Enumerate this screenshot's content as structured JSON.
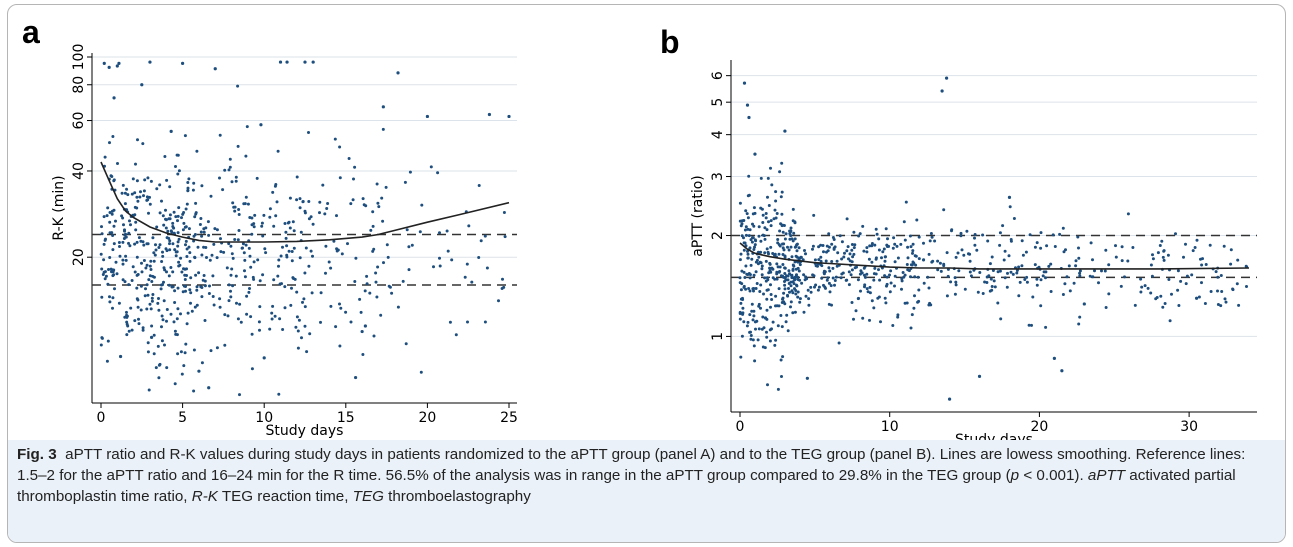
{
  "panels": {
    "a": {
      "letter": "a"
    },
    "b": {
      "letter": "b"
    }
  },
  "caption": {
    "label": "Fig. 3",
    "text_1": "aPTT ratio and R-K values during study days in patients randomized to the aPTT group (panel A) and to the TEG group (panel B). Lines are lowess smoothing. Reference lines: 1.5–2 for the aPTT ratio and 16–24 min for the R time. 56.5% of the analysis was in range in the aPTT group compared to 29.8% in the TEG group (",
    "p_symbol": "p",
    "text_2": " < 0.001). ",
    "abbr_aptt": "aPTT",
    "def_aptt": " activated partial thromboplastin time ratio, ",
    "abbr_rk": "R-K",
    "def_rk": " TEG reaction time, ",
    "abbr_teg": "TEG",
    "def_teg": " thromboelastography"
  },
  "chart_data": [
    {
      "type": "scatter",
      "panel": "a",
      "title": "",
      "xlabel": "Study days",
      "ylabel": "R-K (min)",
      "xlim": [
        0,
        25
      ],
      "x_ticks": [
        0,
        5,
        10,
        15,
        20,
        25
      ],
      "y_scale": "log",
      "ylim": [
        6.5,
        100
      ],
      "y_ticks": [
        20,
        40,
        60,
        80,
        100
      ],
      "y_tick_labels": [
        "20",
        "40",
        "60",
        "80",
        "100"
      ],
      "reference_lines": [
        16,
        24
      ],
      "grid": true,
      "series": [
        {
          "kind": "lowess",
          "x": [
            0,
            0.5,
            1,
            1.5,
            2,
            3,
            4,
            5,
            6,
            7,
            8,
            10,
            12,
            14,
            16,
            17,
            18,
            20,
            22,
            25
          ],
          "y": [
            43,
            37,
            32,
            29,
            27.5,
            25.5,
            24.3,
            23.5,
            22.9,
            22.6,
            22.6,
            22.6,
            22.7,
            23.0,
            23.5,
            24.0,
            24.8,
            26.5,
            28.2,
            31
          ]
        },
        {
          "kind": "points",
          "note": "approx. 800 individual R-K measurements read as a density cloud",
          "x": [
            0.2,
            0.5,
            1.0,
            1.1,
            3.0,
            5.0,
            7.0,
            11.0,
            11.4,
            12.5,
            13.0,
            17.3,
            18.2,
            20.0,
            23.8,
            25.0,
            0.8,
            2.5,
            4.3,
            9.8,
            16.0,
            16.2,
            6.0,
            6.6,
            15.6,
            1.2,
            3.1,
            10.0
          ],
          "y": [
            95,
            92,
            93,
            95,
            96,
            95,
            91,
            96,
            96,
            96,
            96,
            67,
            88,
            62,
            63,
            62,
            72,
            80,
            55,
            58,
            11,
            11.5,
            8,
            7,
            7.6,
            9,
            10.5,
            8.9
          ]
        }
      ]
    },
    {
      "type": "scatter",
      "panel": "b",
      "title": "",
      "xlabel": "Study days",
      "ylabel": "aPTT (ratio)",
      "xlim": [
        0,
        34
      ],
      "x_ticks": [
        0,
        10,
        20,
        30
      ],
      "y_scale": "log",
      "ylim": [
        0.62,
        6.5
      ],
      "y_ticks": [
        1,
        2,
        3,
        4,
        5,
        6
      ],
      "reference_lines": [
        1.5,
        2
      ],
      "grid": true,
      "series": [
        {
          "kind": "lowess",
          "x": [
            0,
            0.5,
            1,
            2,
            3,
            4,
            5,
            6,
            8,
            10,
            12,
            14,
            16,
            18,
            20,
            24,
            28,
            34
          ],
          "y": [
            1.9,
            1.82,
            1.77,
            1.73,
            1.7,
            1.68,
            1.66,
            1.65,
            1.63,
            1.61,
            1.6,
            1.6,
            1.59,
            1.59,
            1.59,
            1.59,
            1.59,
            1.6
          ]
        },
        {
          "kind": "points",
          "note": "approx. 1000 individual aPTT ratio measurements read as a density cloud",
          "x": [
            0.3,
            0.5,
            0.6,
            1.0,
            3.0,
            13.5,
            13.8,
            4.5,
            14.0,
            16.0,
            21.0,
            21.5,
            18.0,
            23.0,
            30.5
          ],
          "y": [
            5.7,
            4.9,
            4.5,
            3.5,
            4.1,
            5.4,
            5.9,
            0.75,
            0.65,
            0.76,
            0.86,
            0.79,
            2.6,
            1.25,
            1.3
          ]
        }
      ]
    }
  ]
}
